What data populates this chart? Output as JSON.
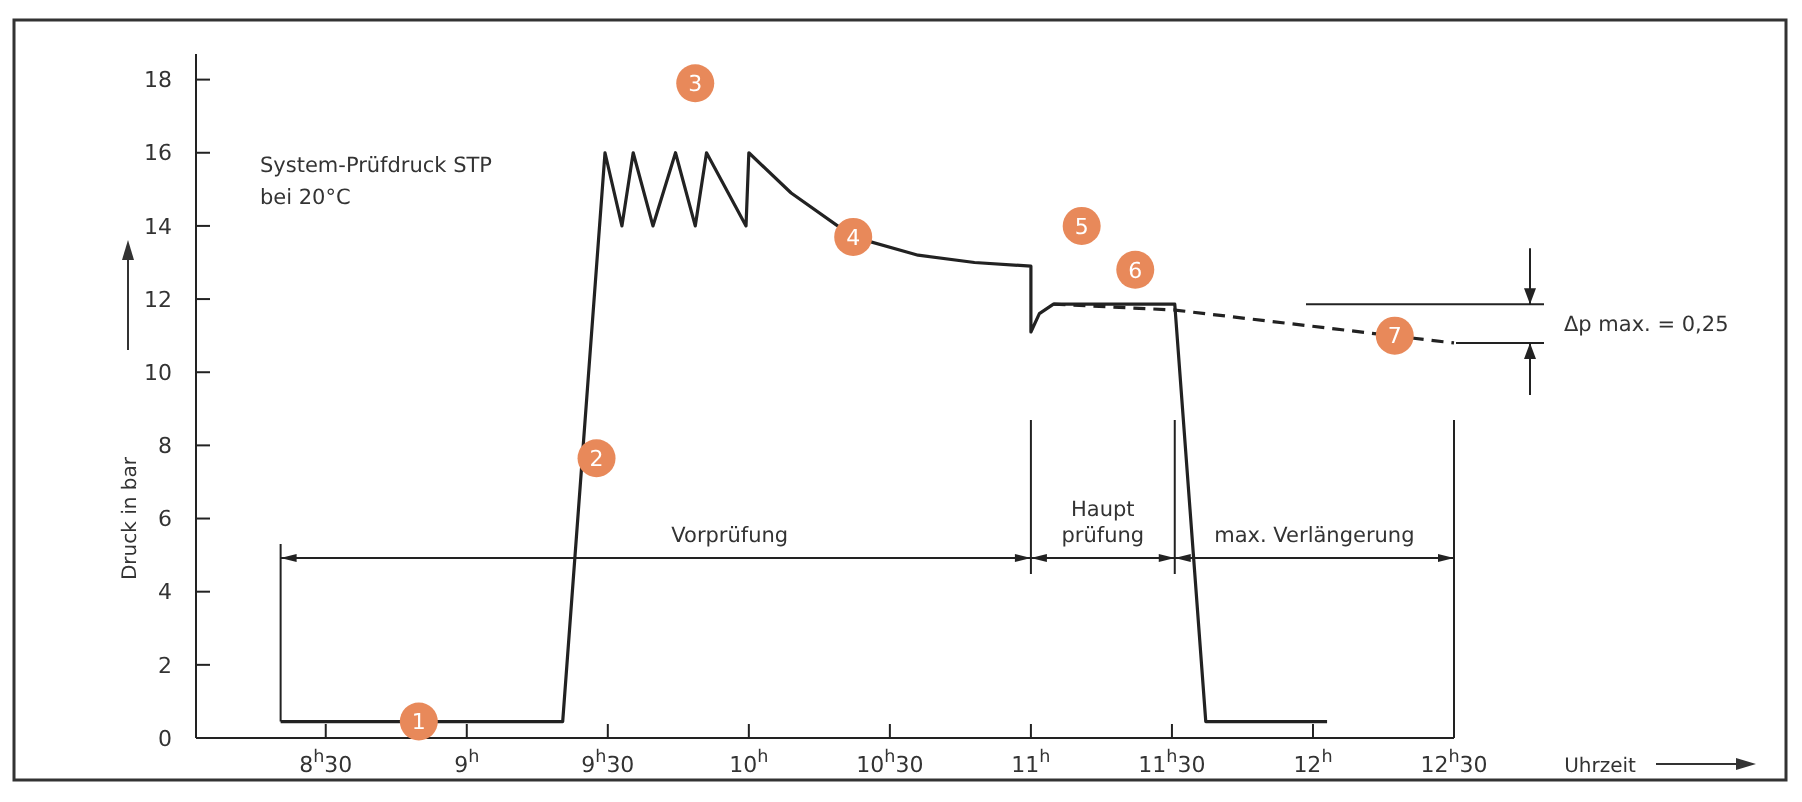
{
  "chart_data": {
    "type": "line",
    "xlabel": "Uhrzeit",
    "ylabel": "Druck in bar",
    "xlim": [
      8.04,
      12.5
    ],
    "ylim": [
      0,
      18.7
    ],
    "xticks": [
      {
        "value": 8.5,
        "label": "8$^{h}$30"
      },
      {
        "value": 9,
        "label": "9$^{h}$"
      },
      {
        "value": 9.5,
        "label": "9$^{h}$30"
      },
      {
        "value": 10,
        "label": "10$^{h}$"
      },
      {
        "value": 10.5,
        "label": "10$^{h}$30"
      },
      {
        "value": 11,
        "label": "11$^{h}$"
      },
      {
        "value": 11.5,
        "label": "11$^{h}$30"
      },
      {
        "value": 12,
        "label": "12$^{h}$"
      },
      {
        "value": 12.5,
        "label": "12$^{h}$30"
      }
    ],
    "yticks": [
      0,
      2,
      4,
      6,
      8,
      10,
      12,
      14,
      16,
      18
    ],
    "grid": false,
    "marker": "none",
    "series": [
      {
        "color": "#222222",
        "line_style": "solid",
        "x": [
          8.34,
          9.34,
          9.49,
          9.55,
          9.59,
          9.66,
          9.74,
          9.81,
          9.85,
          9.99,
          10.0,
          10.15,
          10.37,
          10.6,
          10.8,
          11.0,
          11.0,
          11.03,
          11.08,
          11.51,
          11.62,
          12.05
        ],
        "values": [
          0.45,
          0.45,
          16,
          14,
          16,
          14,
          16,
          14,
          16,
          14,
          16,
          14.9,
          13.7,
          13.2,
          13.0,
          12.9,
          11.1,
          11.6,
          11.86,
          11.86,
          0.45,
          0.45
        ]
      },
      {
        "color": "#222222",
        "line_style": "dashed",
        "x": [
          11.08,
          11.51,
          12.5
        ],
        "values": [
          11.86,
          11.7,
          10.8
        ]
      }
    ],
    "ref_lines": [
      {
        "axis": "x",
        "value": 8.34
      },
      {
        "axis": "x",
        "value": 11.0
      },
      {
        "axis": "x",
        "value": 11.51
      },
      {
        "axis": "x",
        "value": 12.5
      }
    ],
    "annotations": [
      "System-Prüfdruck STP\nbei 20°C",
      "Δp max. = 0,25",
      "Vorprüfung",
      "Haupt\nprüfung",
      "max. Verlängerung",
      {
        "text": "1",
        "x": 8.83,
        "y": 0.45
      },
      {
        "text": "2",
        "x": 9.46,
        "y": 7.65
      },
      {
        "text": "3",
        "x": 9.81,
        "y": 17.9
      },
      {
        "text": "4",
        "x": 10.37,
        "y": 13.7
      },
      {
        "text": "5",
        "x": 11.18,
        "y": 14.0
      },
      {
        "text": "6",
        "x": 11.37,
        "y": 12.8
      },
      {
        "text": "7",
        "x": 12.29,
        "y": 11.0
      }
    ]
  }
}
